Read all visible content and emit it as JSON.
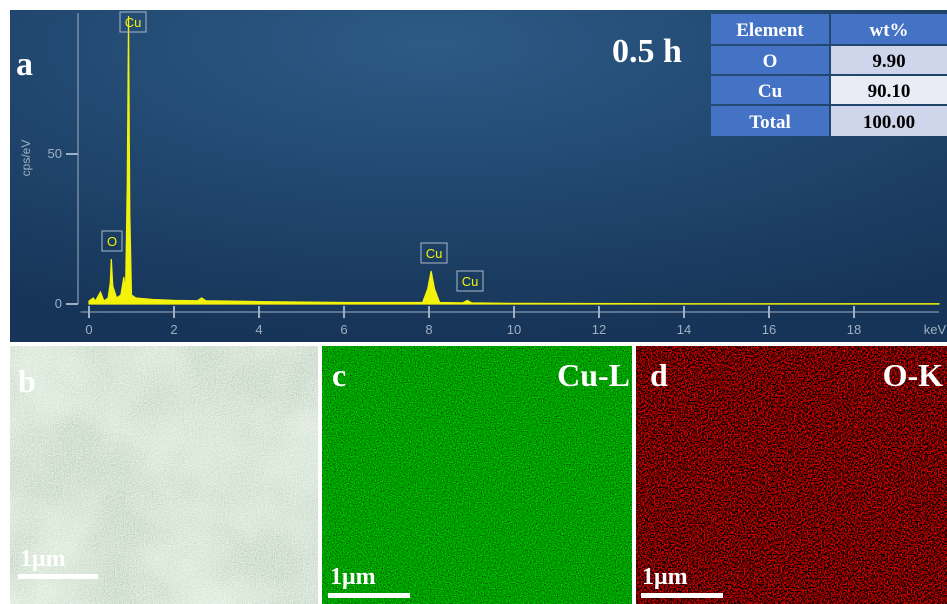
{
  "chart_data": {
    "type": "area",
    "panel": "a",
    "subtitle": "0.5 h",
    "x_label": "keV",
    "y_label": "cps/eV",
    "color": "#f2f20a",
    "x": [
      0,
      0.1,
      0.15,
      0.27,
      0.35,
      0.45,
      0.5,
      0.525,
      0.56,
      0.65,
      0.75,
      0.82,
      0.86,
      0.9,
      0.93,
      0.96,
      1.0,
      1.1,
      1.5,
      2.0,
      2.55,
      2.65,
      2.75,
      4.0,
      6.0,
      7.85,
      7.97,
      8.05,
      8.13,
      8.25,
      8.8,
      8.9,
      9.0,
      10.0,
      14.0,
      20.0
    ],
    "values": [
      1,
      2,
      1,
      4,
      1,
      2,
      7,
      15,
      6,
      2,
      3,
      9,
      4,
      40,
      96,
      30,
      3,
      2,
      1.5,
      1.2,
      1.1,
      2,
      1.1,
      0.8,
      0.5,
      0.5,
      5,
      11,
      5,
      0.5,
      0.4,
      1.2,
      0.4,
      0.2,
      0.1,
      0.1
    ],
    "annotations": [
      "O",
      "Cu",
      "Cu",
      "Cu"
    ],
    "xlim": [
      -0.2,
      20
    ],
    "ylim": [
      0,
      97
    ],
    "xticks": [
      0,
      2,
      4,
      6,
      8,
      10,
      12,
      14,
      16,
      18
    ],
    "yticks": [
      0,
      50
    ]
  },
  "table": {
    "header": [
      "Element",
      "wt%"
    ],
    "rows": [
      [
        "O",
        "9.90"
      ],
      [
        "Cu",
        "90.10"
      ],
      [
        "Total",
        "100.00"
      ]
    ]
  },
  "panels": [
    {
      "label": "b",
      "scale": "1μm"
    },
    {
      "label": "c",
      "element": "Cu-L",
      "scale": "1μm"
    },
    {
      "label": "d",
      "element": "O-K",
      "scale": "1μm"
    }
  ]
}
